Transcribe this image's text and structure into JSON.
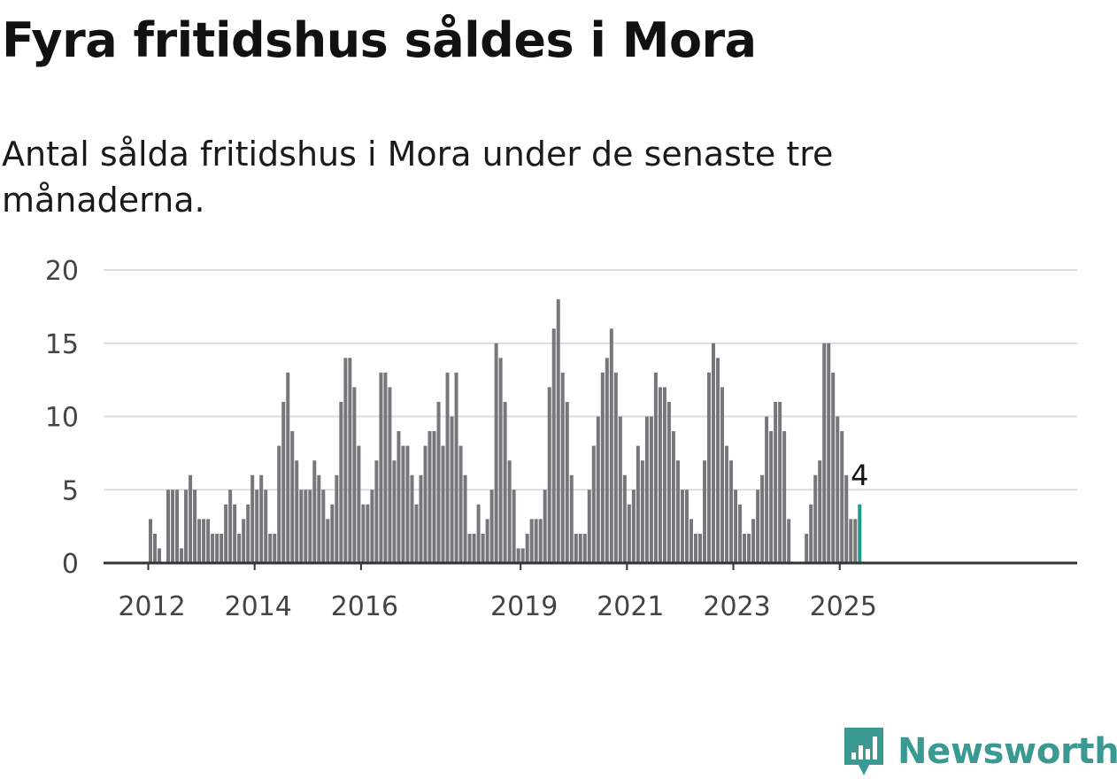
{
  "title": "Fyra fritidshus såldes i Mora",
  "subtitle": "Antal sålda fritidshus i Mora under de senaste tre månaderna.",
  "brand": {
    "name": "Newsworthy",
    "color": "#3a9a93"
  },
  "chart_data": {
    "type": "bar",
    "start": "2012-01",
    "frequency": "monthly",
    "values": [
      3,
      2,
      1,
      0,
      5,
      5,
      5,
      1,
      5,
      6,
      5,
      3,
      3,
      3,
      2,
      2,
      2,
      4,
      5,
      4,
      2,
      3,
      4,
      6,
      5,
      6,
      5,
      2,
      2,
      8,
      11,
      13,
      9,
      7,
      5,
      5,
      5,
      7,
      6,
      5,
      3,
      4,
      6,
      11,
      14,
      14,
      12,
      8,
      4,
      4,
      5,
      7,
      13,
      13,
      12,
      7,
      9,
      8,
      8,
      6,
      4,
      6,
      8,
      9,
      9,
      11,
      8,
      13,
      10,
      13,
      8,
      6,
      2,
      2,
      4,
      2,
      3,
      5,
      15,
      14,
      11,
      7,
      5,
      1,
      1,
      2,
      3,
      3,
      3,
      5,
      12,
      16,
      18,
      13,
      11,
      6,
      2,
      2,
      2,
      5,
      8,
      10,
      13,
      14,
      16,
      13,
      10,
      6,
      4,
      5,
      8,
      7,
      10,
      10,
      13,
      12,
      12,
      11,
      9,
      7,
      5,
      5,
      3,
      2,
      2,
      7,
      13,
      15,
      14,
      12,
      8,
      7,
      5,
      4,
      2,
      2,
      3,
      5,
      6,
      10,
      9,
      11,
      11,
      9,
      3,
      0,
      0,
      0,
      2,
      4,
      6,
      7,
      15,
      15,
      13,
      10,
      9,
      6,
      3,
      3,
      4
    ],
    "highlight_color": "#1f9a90",
    "bar_color": "#77767b",
    "label": "4",
    "x_ticks": [
      "2012",
      "2014",
      "2016",
      "2019",
      "2021",
      "2023",
      "2025"
    ],
    "y_ticks": [
      "0",
      "5",
      "10",
      "15",
      "20"
    ],
    "ylim": [
      0,
      20
    ],
    "grid": true
  }
}
